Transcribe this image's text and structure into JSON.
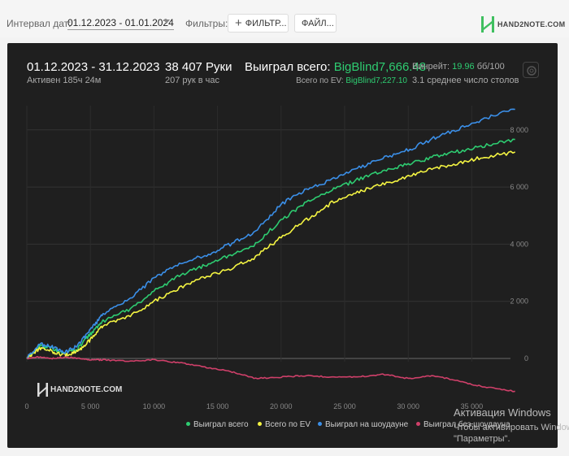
{
  "toolbar": {
    "date_label": "Интервал дат:",
    "date_range": "01.12.2023 - 01.01.2024",
    "filters_label": "Фильтры:",
    "filter_button": "ФИЛЬТР...",
    "file_button": "ФАЙЛ...",
    "brand": "HAND2NOTE.COM"
  },
  "summary": {
    "period": "01.12.2023 - 31.12.2023",
    "active": "Активен 185ч 24м",
    "hands": "38 407 Руки",
    "hands_rate": "207 рук в час",
    "won_label": "Выиграл всего:",
    "won_value": "BigBlind7,666.48",
    "ev_label": "Всего по EV:",
    "ev_value": "BigBlind7,227.10",
    "winrate_label": "Винрейт:",
    "winrate_value": "19.96",
    "winrate_unit": "бб/100",
    "tables": "3.1 среднее число столов"
  },
  "watermark": "HAND2NOTE.COM",
  "windows_activation": {
    "title": "Активация Windows",
    "line1": "Чтобы активировать Windows,",
    "line2": "\"Параметры\"."
  },
  "colors": {
    "won": "#2ecc71",
    "ev": "#f4f442",
    "showdown": "#3b8fe8",
    "nonshowdown": "#d0406a",
    "panel": "#1f1f1f"
  },
  "chart_data": {
    "type": "line",
    "x_ticks": [
      "0",
      "5 000",
      "10 000",
      "15 000",
      "20 000",
      "25 000",
      "30 000",
      "35 000"
    ],
    "y_ticks": [
      "0",
      "2 000",
      "4 000",
      "6 000",
      "8 000"
    ],
    "xlim": [
      0,
      38407
    ],
    "ylim": [
      -1400,
      9000
    ],
    "grid": true,
    "legend_position": "bottom",
    "x": [
      0,
      1000,
      2000,
      3000,
      4000,
      5000,
      6000,
      8000,
      10000,
      12000,
      14000,
      16000,
      18000,
      20000,
      22000,
      24000,
      26000,
      28000,
      30000,
      32000,
      34000,
      36000,
      38407
    ],
    "series": [
      {
        "name": "Выиграл всего",
        "color": "#2ecc71",
        "values": [
          0,
          450,
          350,
          150,
          350,
          850,
          1300,
          1700,
          2350,
          2900,
          3250,
          3600,
          4000,
          4850,
          5450,
          5900,
          6250,
          6550,
          6800,
          7050,
          7250,
          7450,
          7666
        ]
      },
      {
        "name": "Всего по EV",
        "color": "#f4f442",
        "values": [
          0,
          350,
          250,
          100,
          250,
          650,
          1150,
          1450,
          2000,
          2450,
          2850,
          3150,
          3550,
          4250,
          4850,
          5450,
          5800,
          6100,
          6350,
          6650,
          6850,
          7050,
          7227
        ]
      },
      {
        "name": "Выиграл на шоудауне",
        "color": "#3b8fe8",
        "values": [
          0,
          500,
          400,
          200,
          450,
          1000,
          1550,
          2050,
          2800,
          3300,
          3600,
          4000,
          4450,
          5400,
          5900,
          6250,
          6650,
          7000,
          7300,
          7700,
          8050,
          8400,
          8720
        ]
      },
      {
        "name": "Выиграл без шоудауна",
        "color": "#d0406a",
        "values": [
          0,
          50,
          0,
          50,
          0,
          -50,
          -50,
          -100,
          -50,
          -150,
          -300,
          -450,
          -700,
          -650,
          -600,
          -650,
          -650,
          -550,
          -700,
          -600,
          -800,
          -1000,
          -1150
        ]
      }
    ]
  }
}
